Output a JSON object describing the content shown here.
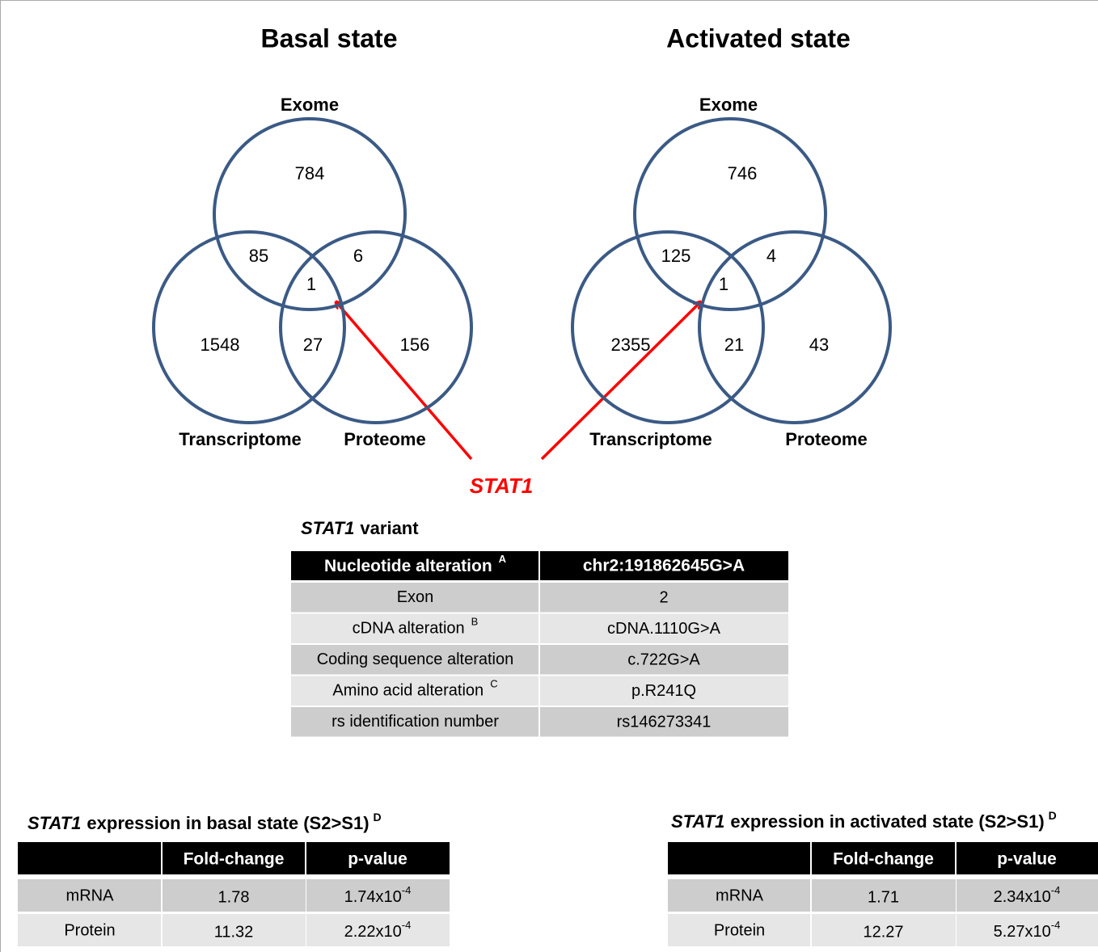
{
  "basal": {
    "title": "Basal state",
    "labels": {
      "exome": "Exome",
      "transcriptome": "Transcriptome",
      "proteome": "Proteome"
    },
    "counts": {
      "exome_only": 784,
      "exome_transcriptome": 85,
      "exome_proteome": 6,
      "all_three": 1,
      "transcriptome_only": 1548,
      "transcriptome_proteome": 27,
      "proteome_only": 156
    }
  },
  "activated": {
    "title": "Activated state",
    "labels": {
      "exome": "Exome",
      "transcriptome": "Transcriptome",
      "proteome": "Proteome"
    },
    "counts": {
      "exome_only": 746,
      "exome_transcriptome": 125,
      "exome_proteome": 4,
      "all_three": 1,
      "transcriptome_only": 2355,
      "transcriptome_proteome": 21,
      "proteome_only": 43
    }
  },
  "callout": "STAT1",
  "variant_table": {
    "title": {
      "gene": "STAT1",
      "text": "variant"
    },
    "header": {
      "label": "Nucleotide alteration",
      "sup": "A",
      "value": "chr2:191862645G>A"
    },
    "rows": [
      {
        "label": "Exon",
        "value": 2
      },
      {
        "label": "cDNA alteration",
        "sup": "B",
        "value": "cDNA.1110G>A"
      },
      {
        "label": "Coding sequence alteration",
        "value": "c.722G>A"
      },
      {
        "label": "Amino acid alteration",
        "sup": "C",
        "value": "p.R241Q"
      },
      {
        "label": "rs identification number",
        "value": "rs146273341"
      }
    ]
  },
  "basal_expression": {
    "title": {
      "gene": "STAT1",
      "text": "expression in basal state (S2>S1)",
      "sup": "D"
    },
    "columns": [
      "Fold-change",
      "p-value"
    ],
    "rows": [
      {
        "label": "mRNA",
        "fold_change": 1.78,
        "p_value": {
          "base": "1.74x10",
          "exp": "-4"
        }
      },
      {
        "label": "Protein",
        "fold_change": 11.32,
        "p_value": {
          "base": "2.22x10",
          "exp": "-4"
        }
      }
    ]
  },
  "activated_expression": {
    "title": {
      "gene": "STAT1",
      "text": "expression in activated state (S2>S1)",
      "sup": "D"
    },
    "columns": [
      "Fold-change",
      "p-value"
    ],
    "rows": [
      {
        "label": "mRNA",
        "fold_change": 1.71,
        "p_value": {
          "base": "2.34x10",
          "exp": "-4"
        }
      },
      {
        "label": "Protein",
        "fold_change": 12.27,
        "p_value": {
          "base": "5.27x10",
          "exp": "-4"
        }
      }
    ]
  }
}
